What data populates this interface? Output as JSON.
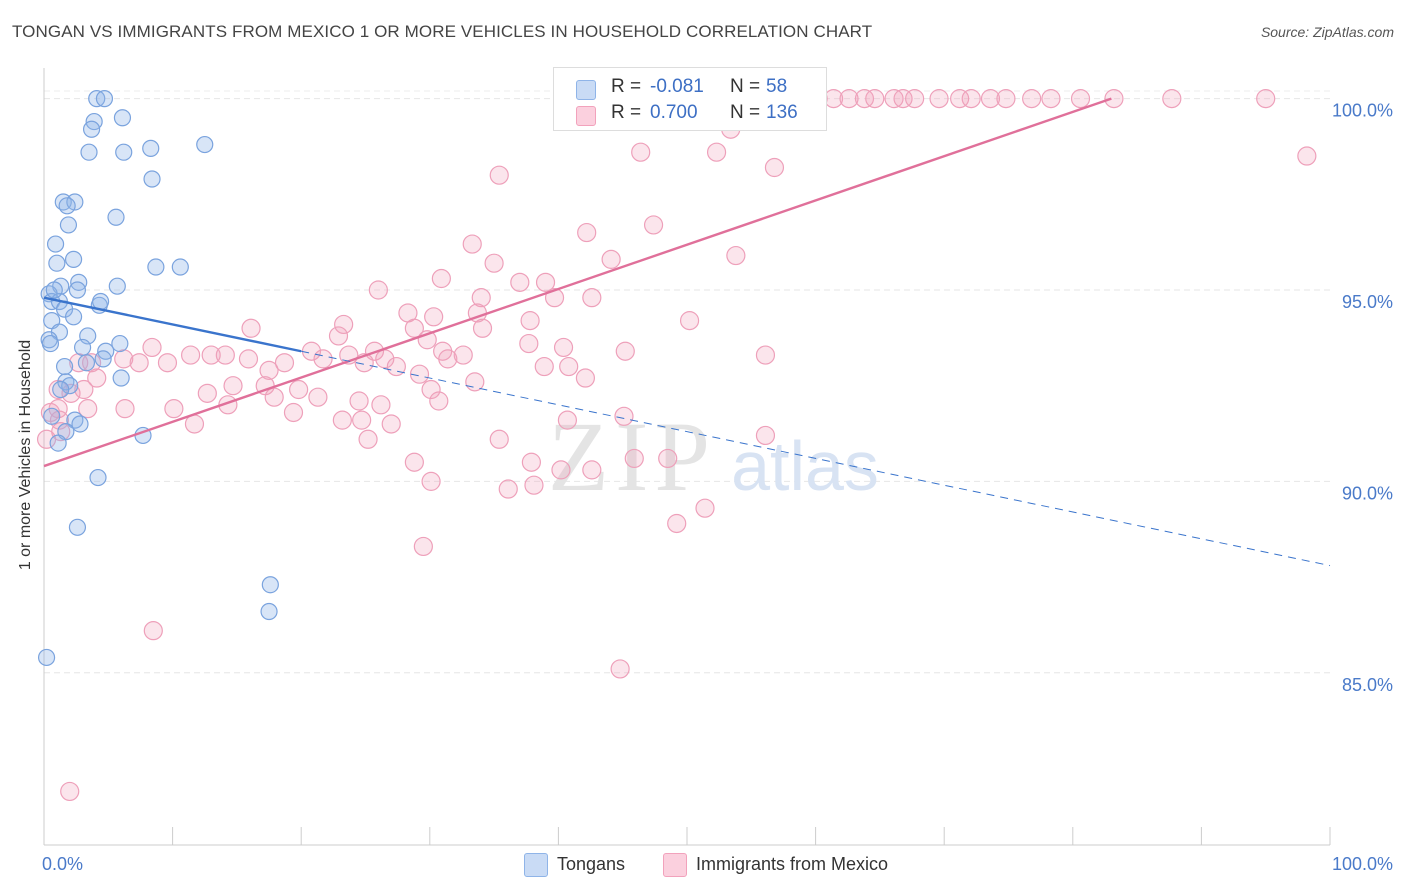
{
  "header": {
    "title": "TONGAN VS IMMIGRANTS FROM MEXICO 1 OR MORE VEHICLES IN HOUSEHOLD CORRELATION CHART",
    "source": "Source: ZipAtlas.com"
  },
  "watermark": {
    "zip": "ZIP",
    "atlas": "atlas"
  },
  "legend": {
    "tongans": {
      "r_label": "R =",
      "r_value": "-0.081",
      "n_label": "N =",
      "n_value": "58"
    },
    "mexico": {
      "r_label": "R =",
      "r_value": "0.700",
      "n_label": "N =",
      "n_value": "136"
    }
  },
  "bottom_legend": {
    "tongans": "Tongans",
    "mexico": "Immigrants from Mexico"
  },
  "chart_data": {
    "type": "scatter",
    "title": "TONGAN VS IMMIGRANTS FROM MEXICO 1 OR MORE VEHICLES IN HOUSEHOLD CORRELATION CHART",
    "ylabel": "1 or more Vehicles in Household",
    "xlabel": "",
    "xlim": [
      0,
      100
    ],
    "ylim": [
      80.5,
      100.8
    ],
    "x_tick_labels": [
      "0.0%",
      "100.0%"
    ],
    "y_ticks": [
      85,
      90,
      95,
      100
    ],
    "y_tick_labels": [
      "85.0%",
      "90.0%",
      "95.0%",
      "100.0%"
    ],
    "grid": true,
    "legend_position": "top-center",
    "colors": {
      "tongans": "#8fb4e8",
      "tongans_line": "#3a74cc",
      "mexico": "#f2a2bc",
      "mexico_line": "#e0709a",
      "tick_text": "#4a7ac9"
    },
    "series": [
      {
        "name": "Tongans",
        "r": -0.081,
        "n": 58,
        "trend": {
          "solid": [
            [
              0,
              94.8
            ],
            [
              20,
              93.4
            ]
          ],
          "dashed": [
            [
              20,
              93.4
            ],
            [
              100,
              87.8
            ]
          ]
        },
        "points": [
          [
            4.1,
            100
          ],
          [
            4.7,
            100
          ],
          [
            3.9,
            99.4
          ],
          [
            6.1,
            99.5
          ],
          [
            3.7,
            99.2
          ],
          [
            3.5,
            98.6
          ],
          [
            6.2,
            98.6
          ],
          [
            8.3,
            98.7
          ],
          [
            12.5,
            98.8
          ],
          [
            8.4,
            97.9
          ],
          [
            1.5,
            97.3
          ],
          [
            2.4,
            97.3
          ],
          [
            1.8,
            97.2
          ],
          [
            5.6,
            96.9
          ],
          [
            1.9,
            96.7
          ],
          [
            0.9,
            96.2
          ],
          [
            2.3,
            95.8
          ],
          [
            1,
            95.7
          ],
          [
            8.7,
            95.6
          ],
          [
            10.6,
            95.6
          ],
          [
            2.7,
            95.2
          ],
          [
            1.3,
            95.1
          ],
          [
            5.7,
            95.1
          ],
          [
            2.6,
            95
          ],
          [
            0.4,
            94.9
          ],
          [
            0.6,
            94.7
          ],
          [
            1.2,
            94.7
          ],
          [
            1.6,
            94.5
          ],
          [
            2.3,
            94.3
          ],
          [
            0.6,
            94.2
          ],
          [
            4.3,
            94.6
          ],
          [
            4.4,
            94.7
          ],
          [
            3.4,
            93.8
          ],
          [
            1.2,
            93.9
          ],
          [
            0.4,
            93.7
          ],
          [
            0.5,
            93.6
          ],
          [
            3,
            93.5
          ],
          [
            4.8,
            93.4
          ],
          [
            3.3,
            93.1
          ],
          [
            4.6,
            93.2
          ],
          [
            1.6,
            93
          ],
          [
            1.7,
            92.6
          ],
          [
            2,
            92.5
          ],
          [
            6,
            92.7
          ],
          [
            1.3,
            92.4
          ],
          [
            2.4,
            91.6
          ],
          [
            0.6,
            91.7
          ],
          [
            1.7,
            91.3
          ],
          [
            7.7,
            91.2
          ],
          [
            1.1,
            91
          ],
          [
            4.2,
            90.1
          ],
          [
            2.6,
            88.8
          ],
          [
            17.6,
            87.3
          ],
          [
            17.5,
            86.6
          ],
          [
            0.2,
            85.4
          ],
          [
            2.8,
            91.5
          ],
          [
            0.8,
            95
          ],
          [
            5.9,
            93.6
          ]
        ]
      },
      {
        "name": "Immigrants from Mexico",
        "r": 0.7,
        "n": 136,
        "trend": {
          "solid": [
            [
              0,
              90.4
            ],
            [
              83,
              100
            ]
          ]
        },
        "points": [
          [
            47.6,
            100
          ],
          [
            48.5,
            100
          ],
          [
            52.3,
            100
          ],
          [
            53.5,
            100
          ],
          [
            54.8,
            100
          ],
          [
            55.8,
            100
          ],
          [
            57.1,
            100
          ],
          [
            58.9,
            100
          ],
          [
            60.2,
            100
          ],
          [
            61.4,
            100
          ],
          [
            62.6,
            100
          ],
          [
            63.8,
            100
          ],
          [
            64.6,
            100
          ],
          [
            66.1,
            100
          ],
          [
            66.8,
            100
          ],
          [
            67.7,
            100
          ],
          [
            69.6,
            100
          ],
          [
            71.2,
            100
          ],
          [
            72.1,
            100
          ],
          [
            73.6,
            100
          ],
          [
            74.8,
            100
          ],
          [
            76.8,
            100
          ],
          [
            78.3,
            100
          ],
          [
            80.6,
            100
          ],
          [
            83.2,
            100
          ],
          [
            87.7,
            100
          ],
          [
            95,
            100
          ],
          [
            53.4,
            99.2
          ],
          [
            46.4,
            98.6
          ],
          [
            52.3,
            98.6
          ],
          [
            56.8,
            98.2
          ],
          [
            98.2,
            98.5
          ],
          [
            35.4,
            98
          ],
          [
            42.2,
            96.5
          ],
          [
            47.4,
            96.7
          ],
          [
            33.3,
            96.2
          ],
          [
            53.8,
            95.9
          ],
          [
            44.1,
            95.8
          ],
          [
            35,
            95.7
          ],
          [
            30.9,
            95.3
          ],
          [
            39,
            95.2
          ],
          [
            26,
            95
          ],
          [
            37,
            95.2
          ],
          [
            34,
            94.8
          ],
          [
            39.7,
            94.8
          ],
          [
            42.6,
            94.8
          ],
          [
            28.3,
            94.4
          ],
          [
            33.7,
            94.4
          ],
          [
            30.3,
            94.3
          ],
          [
            37.8,
            94.2
          ],
          [
            50.2,
            94.2
          ],
          [
            23.3,
            94.1
          ],
          [
            16.1,
            94
          ],
          [
            22.9,
            93.8
          ],
          [
            28.8,
            94
          ],
          [
            34.1,
            94
          ],
          [
            29.8,
            93.7
          ],
          [
            37.7,
            93.6
          ],
          [
            40.4,
            93.5
          ],
          [
            20.8,
            93.4
          ],
          [
            45.2,
            93.4
          ],
          [
            25.7,
            93.4
          ],
          [
            31,
            93.4
          ],
          [
            32.6,
            93.3
          ],
          [
            11.4,
            93.3
          ],
          [
            13,
            93.3
          ],
          [
            14.1,
            93.3
          ],
          [
            56.1,
            93.3
          ],
          [
            21.7,
            93.2
          ],
          [
            7.4,
            93.1
          ],
          [
            40.8,
            93
          ],
          [
            23.7,
            93.3
          ],
          [
            24.9,
            93.1
          ],
          [
            26.5,
            93.2
          ],
          [
            31.4,
            93.2
          ],
          [
            6.2,
            93.2
          ],
          [
            9.6,
            93.1
          ],
          [
            3.7,
            93.1
          ],
          [
            15.9,
            93.2
          ],
          [
            18.7,
            93.1
          ],
          [
            17.5,
            92.9
          ],
          [
            27.4,
            93
          ],
          [
            29.2,
            92.8
          ],
          [
            14.7,
            92.5
          ],
          [
            8.4,
            93.5
          ],
          [
            17.2,
            92.5
          ],
          [
            33.5,
            92.6
          ],
          [
            38.9,
            93
          ],
          [
            19.8,
            92.4
          ],
          [
            42.1,
            92.7
          ],
          [
            4.1,
            92.7
          ],
          [
            12.7,
            92.3
          ],
          [
            17.9,
            92.2
          ],
          [
            21.3,
            92.2
          ],
          [
            24.5,
            92.1
          ],
          [
            26.2,
            92
          ],
          [
            3.4,
            91.9
          ],
          [
            6.3,
            91.9
          ],
          [
            10.1,
            91.9
          ],
          [
            14.3,
            92
          ],
          [
            19.4,
            91.8
          ],
          [
            23.2,
            91.6
          ],
          [
            30.1,
            92.4
          ],
          [
            30.7,
            92.1
          ],
          [
            24.7,
            91.6
          ],
          [
            27,
            91.5
          ],
          [
            35.4,
            91.1
          ],
          [
            45.1,
            91.7
          ],
          [
            40.7,
            91.6
          ],
          [
            11.7,
            91.5
          ],
          [
            25.2,
            91.1
          ],
          [
            48.5,
            90.6
          ],
          [
            37.9,
            90.5
          ],
          [
            56.1,
            91.2
          ],
          [
            42.6,
            90.3
          ],
          [
            45.9,
            90.6
          ],
          [
            40.2,
            90.3
          ],
          [
            28.8,
            90.5
          ],
          [
            30.1,
            90
          ],
          [
            38.1,
            89.9
          ],
          [
            51.4,
            89.3
          ],
          [
            36.1,
            89.8
          ],
          [
            29.5,
            88.3
          ],
          [
            49.2,
            88.9
          ],
          [
            8.5,
            86.1
          ],
          [
            44.8,
            85.1
          ],
          [
            2,
            81.9
          ],
          [
            1.2,
            91.6
          ],
          [
            1.3,
            91.3
          ],
          [
            1.1,
            92.4
          ],
          [
            1.1,
            91.9
          ],
          [
            2.1,
            92.3
          ],
          [
            0.2,
            91.1
          ],
          [
            2.7,
            93.1
          ],
          [
            0.5,
            91.8
          ],
          [
            3.1,
            92.4
          ]
        ]
      }
    ]
  }
}
